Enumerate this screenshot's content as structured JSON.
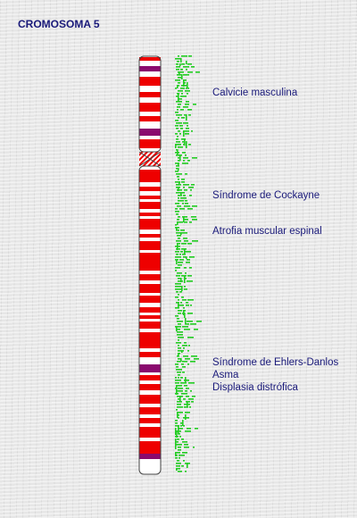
{
  "title": "CROMOSOMA 5",
  "colors": {
    "band_dark": "#ee0000",
    "band_purple": "#8a0a6e",
    "band_light": "#ffffff",
    "outline": "#444444",
    "gene_marks": "#22cc22",
    "label_text": "#1a1a7a"
  },
  "diseases": [
    "Calvicie masculina",
    "Síndrome de Cockayne",
    "Atrofia muscular espinal",
    "Síndrome de Ehlers-Danlos",
    "Asma",
    "Displasia distrófica"
  ]
}
